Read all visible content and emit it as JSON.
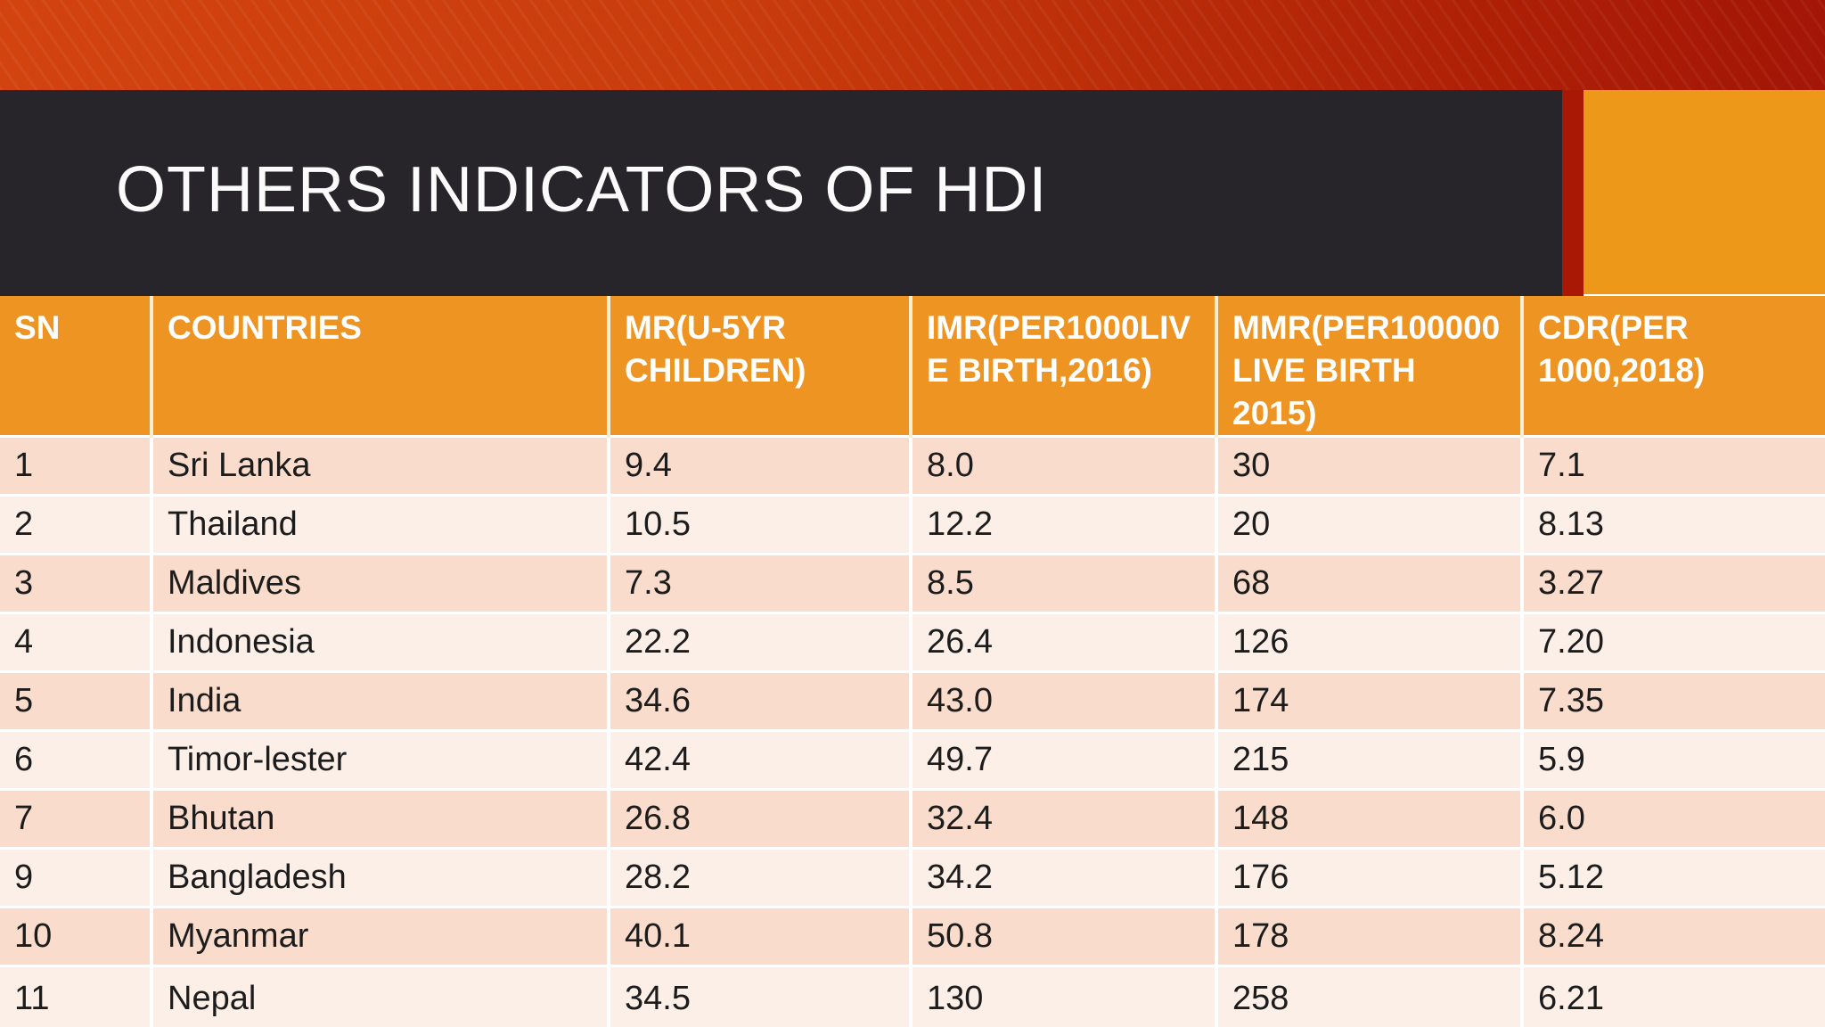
{
  "slide": {
    "title": "OTHERS INDICATORS OF HDI"
  },
  "colors": {
    "band_gradient_left": "#D24310",
    "band_gradient_right": "#A31505",
    "title_bar_bg": "#272529",
    "accent_strip": "#A81804",
    "accent_block_orange": "#EE9819",
    "header_bg": "#ED9422",
    "header_divider": "#F8EFD2",
    "header_text": "#FFFFFF",
    "row_odd_bg": "#F9DCCB",
    "row_even_bg": "#FCEFE7",
    "row_text": "#1C1C1C"
  },
  "table": {
    "columns": [
      {
        "key": "sn",
        "label": "SN"
      },
      {
        "key": "country",
        "label": "COUNTRIES"
      },
      {
        "key": "mr",
        "label": "MR(U-5YR\nCHILDREN)"
      },
      {
        "key": "imr",
        "label": "IMR(PER1000LIV\nE BIRTH,2016)"
      },
      {
        "key": "mmr",
        "label": "MMR(PER100000\nLIVE BIRTH 2015)"
      },
      {
        "key": "cdr",
        "label": "CDR(PER\n1000,2018)"
      }
    ],
    "rows": [
      [
        "1",
        "Sri Lanka",
        "9.4",
        "8.0",
        "30",
        "7.1"
      ],
      [
        "2",
        "Thailand",
        "10.5",
        "12.2",
        "20",
        "8.13"
      ],
      [
        "3",
        "Maldives",
        "7.3",
        "8.5",
        "68",
        "3.27"
      ],
      [
        "4",
        "Indonesia",
        "22.2",
        "26.4",
        "126",
        "7.20"
      ],
      [
        "5",
        "India",
        "34.6",
        "43.0",
        "174",
        "7.35"
      ],
      [
        "6",
        "Timor-lester",
        "42.4",
        "49.7",
        "215",
        "5.9"
      ],
      [
        "7",
        "Bhutan",
        "26.8",
        "32.4",
        "148",
        "6.0"
      ],
      [
        "9",
        "Bangladesh",
        "28.2",
        "34.2",
        "176",
        "5.12"
      ],
      [
        "10",
        "Myanmar",
        "40.1",
        "50.8",
        "178",
        "8.24"
      ],
      [
        "11",
        "Nepal",
        "34.5",
        "130",
        "258",
        "6.21"
      ]
    ]
  }
}
